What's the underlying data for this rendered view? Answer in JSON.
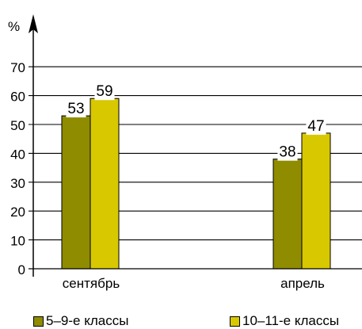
{
  "chart_data": {
    "type": "bar",
    "y_unit": "%",
    "categories": [
      "сентябрь",
      "апрель"
    ],
    "series": [
      {
        "name": "5–9-е классы",
        "values": [
          53,
          38
        ],
        "color": "#8f8c00"
      },
      {
        "name": "10–11-е классы",
        "values": [
          59,
          47
        ],
        "color": "#d8c800"
      }
    ],
    "yticks": [
      0,
      10,
      20,
      30,
      40,
      50,
      60,
      70
    ],
    "ylim": [
      0,
      80
    ],
    "grid": true,
    "legend_position": "bottom",
    "data_labels": true
  }
}
